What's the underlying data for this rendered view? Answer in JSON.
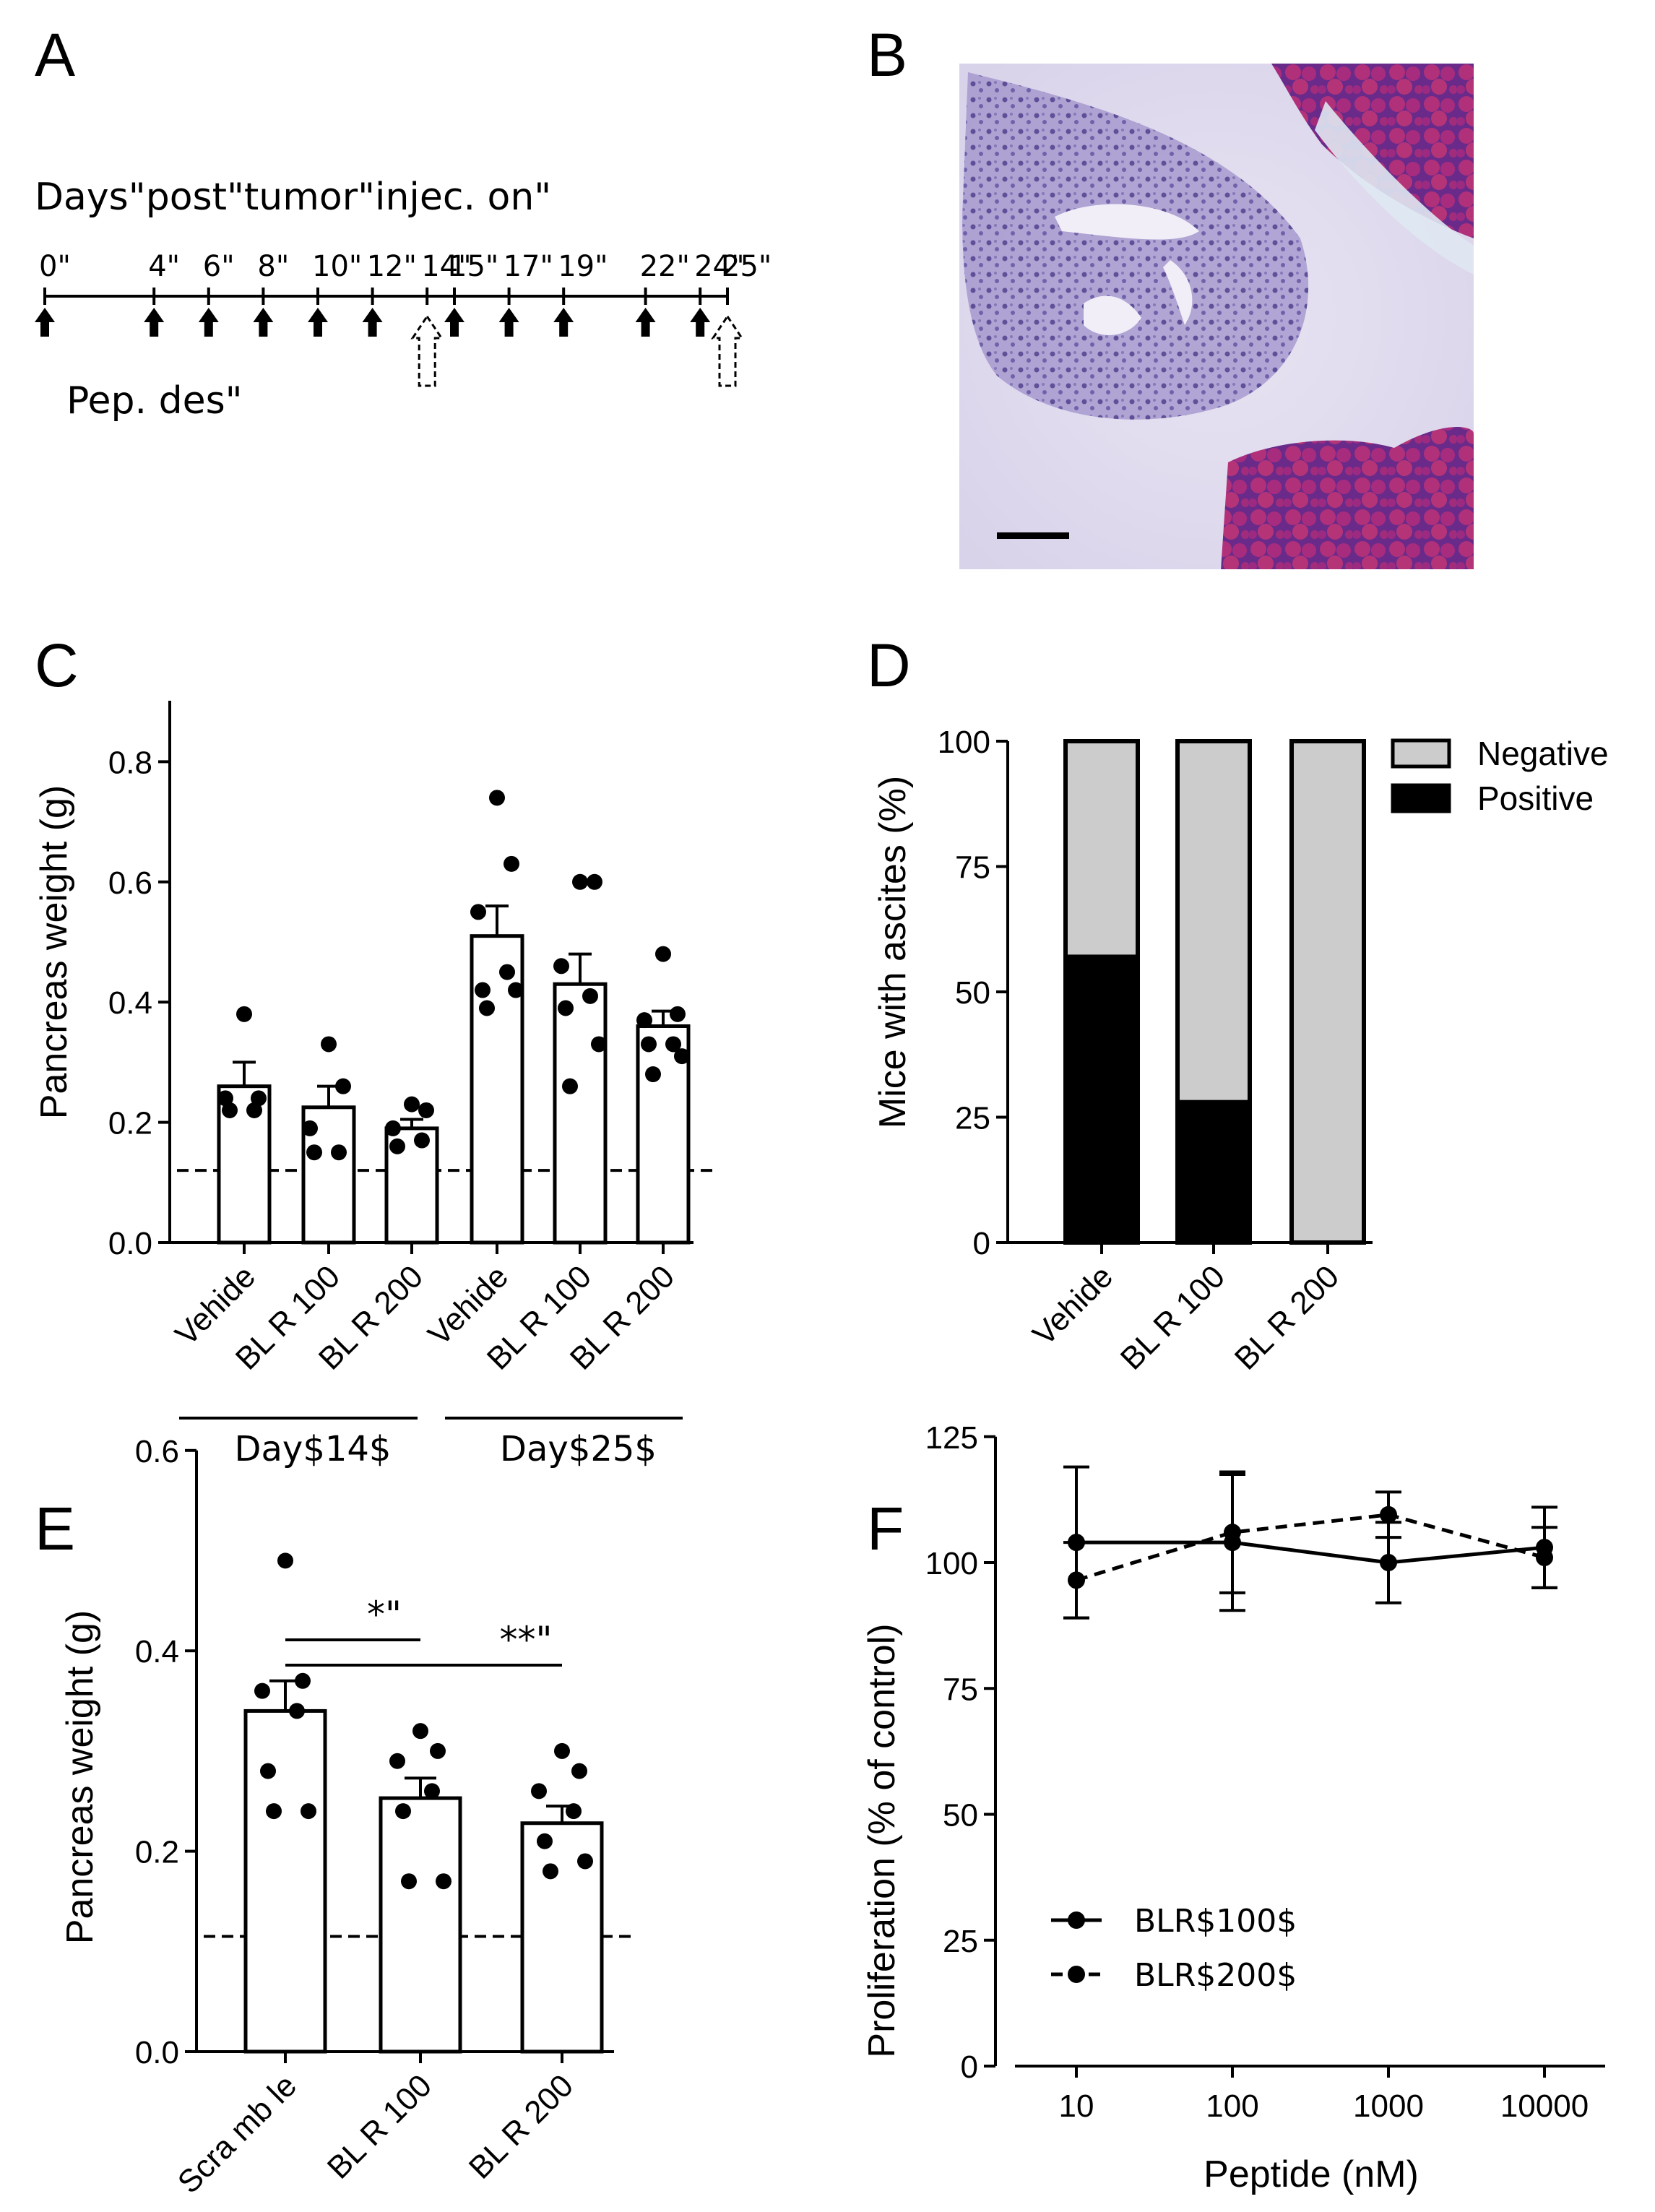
{
  "panels": {
    "A": {
      "letter": "A",
      "title": "Days\"post\"tumor\"injec. on\"",
      "timeline_days": [
        0,
        4,
        6,
        8,
        10,
        12,
        14,
        15,
        17,
        19,
        22,
        24,
        25
      ],
      "day_labels": [
        "0\"",
        "4\"",
        "6\"",
        "8\"",
        "10\"",
        "12\"",
        "14\"",
        "15\"",
        "17\"",
        "19\"",
        "22\"",
        "24\"",
        "25\""
      ],
      "peptide_days": [
        0,
        4,
        6,
        8,
        10,
        12,
        15,
        17,
        19,
        22,
        24
      ],
      "sacrifice_days": [
        14,
        25
      ],
      "legend_label": "Pep. des\""
    },
    "B": {
      "letter": "B",
      "image_desc": "H&E stained pancreatic tumor section"
    }
  },
  "chart_data": [
    {
      "panel": "C",
      "type": "bar",
      "ylabel": "Pancreas weight (g)",
      "ylim": [
        0,
        0.9
      ],
      "yticks": [
        0.0,
        0.2,
        0.4,
        0.6,
        0.8
      ],
      "ytick_labels": [
        "0.0",
        "0.2",
        "0.4",
        "0.6",
        "0.8"
      ],
      "categories": [
        "Vehide",
        "BL R 100",
        "BL R 200",
        "Vehide",
        "BL R 100",
        "BL R 200"
      ],
      "values": [
        0.26,
        0.225,
        0.19,
        0.51,
        0.43,
        0.36
      ],
      "sem": [
        0.04,
        0.035,
        0.015,
        0.05,
        0.05,
        0.025
      ],
      "points": [
        [
          0.38,
          0.24,
          0.24,
          0.22,
          0.22
        ],
        [
          0.33,
          0.26,
          0.19,
          0.15,
          0.15
        ],
        [
          0.23,
          0.22,
          0.19,
          0.17,
          0.16
        ],
        [
          0.74,
          0.63,
          0.55,
          0.45,
          0.42,
          0.42,
          0.39
        ],
        [
          0.6,
          0.6,
          0.46,
          0.41,
          0.39,
          0.33,
          0.26
        ],
        [
          0.48,
          0.38,
          0.37,
          0.33,
          0.33,
          0.31,
          0.28
        ]
      ],
      "reference_line": 0.12,
      "groups": [
        {
          "label": "Day$14$",
          "from": 0,
          "to": 2
        },
        {
          "label": "Day$25$",
          "from": 3,
          "to": 5
        }
      ]
    },
    {
      "panel": "D",
      "type": "bar",
      "ylabel": "Mice with ascites (%)",
      "ylim": [
        0,
        100
      ],
      "yticks": [
        0,
        25,
        50,
        75,
        100
      ],
      "ytick_labels": [
        "0",
        "25",
        "50",
        "75",
        "100"
      ],
      "categories": [
        "Vehide",
        "BL R 100",
        "BL R 200"
      ],
      "series": [
        {
          "name": "Positive",
          "color": "#000000",
          "values": [
            57,
            28,
            0
          ]
        },
        {
          "name": "Negative",
          "color": "#cccccc",
          "values": [
            43,
            72,
            100
          ]
        }
      ]
    },
    {
      "panel": "E",
      "type": "bar",
      "ylabel": "Pancreas weight (g)",
      "ylim": [
        0,
        0.6
      ],
      "yticks": [
        0.0,
        0.2,
        0.4,
        0.6
      ],
      "ytick_labels": [
        "0.0",
        "0.2",
        "0.4",
        "0.6"
      ],
      "categories": [
        "Scra mb le",
        "BL R 100",
        "BL R 200"
      ],
      "values": [
        0.34,
        0.253,
        0.228
      ],
      "sem": [
        0.03,
        0.02,
        0.017
      ],
      "points": [
        [
          0.49,
          0.37,
          0.36,
          0.34,
          0.28,
          0.24,
          0.24
        ],
        [
          0.32,
          0.3,
          0.29,
          0.26,
          0.24,
          0.17,
          0.17
        ],
        [
          0.3,
          0.28,
          0.26,
          0.24,
          0.21,
          0.19,
          0.18
        ]
      ],
      "reference_line": 0.115,
      "significance": [
        {
          "from": 0,
          "to": 1,
          "label": "*\""
        },
        {
          "from": 0,
          "to": 2,
          "label": "**\""
        }
      ]
    },
    {
      "panel": "F",
      "type": "line",
      "xlabel": "Peptide (nM)",
      "ylabel": "Proliferation (% of control)",
      "xscale": "log",
      "x": [
        10,
        100,
        1000,
        10000
      ],
      "xtick_labels": [
        "10",
        "100",
        "1000",
        "10000"
      ],
      "ylim": [
        0,
        125
      ],
      "yticks": [
        0,
        25,
        50,
        75,
        100,
        125
      ],
      "ytick_labels": [
        "0",
        "25",
        "50",
        "75",
        "100",
        "125"
      ],
      "series": [
        {
          "name": "BLR$100$",
          "style": "solid",
          "values": [
            104,
            104,
            100,
            103
          ],
          "err": [
            15,
            13.5,
            8,
            8
          ]
        },
        {
          "name": "BLR$200$",
          "style": "dashed",
          "values": [
            96.5,
            106,
            109.5,
            101
          ],
          "err": [
            7.5,
            12,
            4.5,
            6
          ]
        }
      ]
    }
  ]
}
